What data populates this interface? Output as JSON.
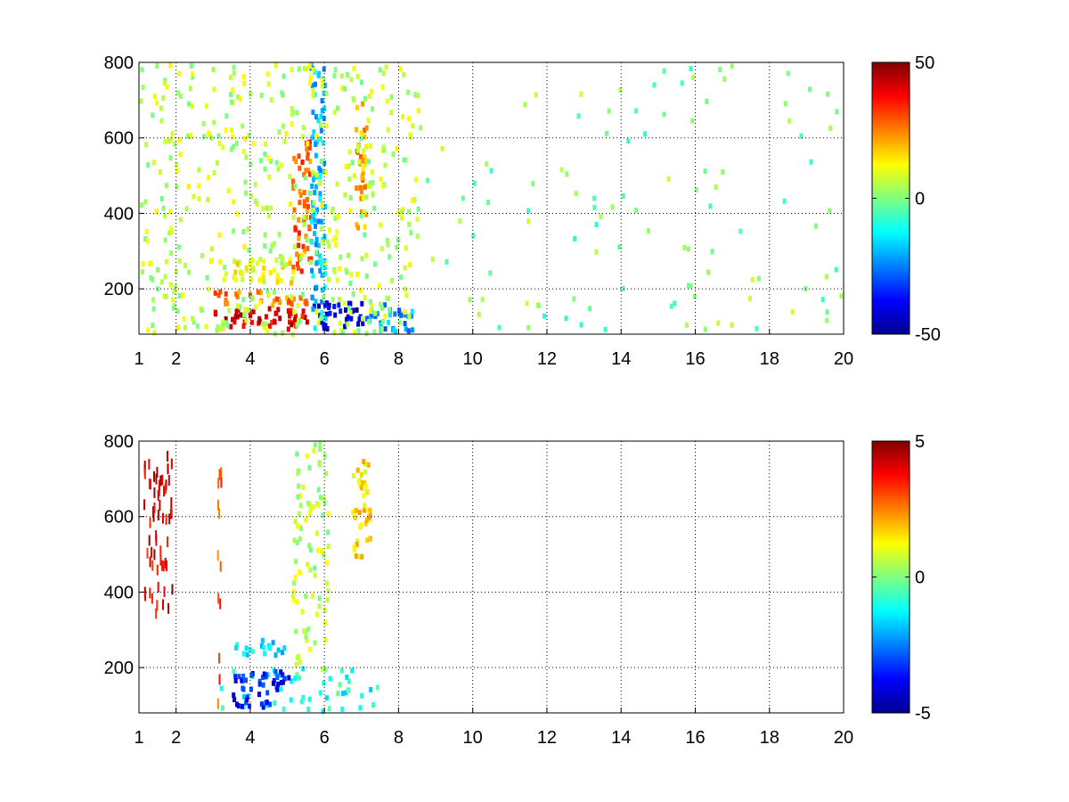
{
  "chart_data": [
    {
      "type": "heatmap",
      "title": "",
      "xlabel": "",
      "ylabel": "",
      "xlim": [
        1,
        20
      ],
      "ylim": [
        80,
        800
      ],
      "xticks": [
        1,
        2,
        4,
        6,
        8,
        10,
        12,
        14,
        16,
        18,
        20
      ],
      "yticks": [
        200,
        400,
        600,
        800
      ],
      "grid": true,
      "colormap": "jet",
      "clim": [
        -50,
        50
      ],
      "colorbar_ticks": [
        -50,
        0,
        50
      ],
      "features": [
        {
          "x": [
            3.0,
            5.5
          ],
          "y": [
            100,
            160
          ],
          "value": 40
        },
        {
          "x": [
            5.5,
            7.0
          ],
          "y": [
            100,
            170
          ],
          "value": -42
        },
        {
          "x": [
            3.0,
            5.5
          ],
          "y": [
            160,
            200
          ],
          "value": 25
        },
        {
          "x": [
            3.5,
            5.2
          ],
          "y": [
            220,
            290
          ],
          "value": 12
        },
        {
          "x": [
            5.1,
            5.6
          ],
          "y": [
            250,
            600
          ],
          "value": 28
        },
        {
          "x": [
            5.6,
            6.0
          ],
          "y": [
            100,
            800
          ],
          "value": -18
        },
        {
          "x": [
            6.8,
            7.1
          ],
          "y": [
            350,
            700
          ],
          "value": 22
        },
        {
          "x": [
            7.1,
            8.4
          ],
          "y": [
            90,
            170
          ],
          "value": -22
        },
        {
          "x": [
            1.0,
            8.5
          ],
          "y": [
            80,
            800
          ],
          "value": 6,
          "pattern": "dense noise"
        },
        {
          "x": [
            8.5,
            20.0
          ],
          "y": [
            80,
            800
          ],
          "value": 0,
          "pattern": "sparse noise"
        }
      ]
    },
    {
      "type": "heatmap",
      "title": "",
      "xlabel": "",
      "ylabel": "",
      "xlim": [
        1,
        20
      ],
      "ylim": [
        80,
        800
      ],
      "xticks": [
        1,
        2,
        4,
        6,
        8,
        10,
        12,
        14,
        16,
        18,
        20
      ],
      "yticks": [
        200,
        400,
        600,
        800
      ],
      "grid": true,
      "colormap": "jet",
      "clim": [
        -5,
        5
      ],
      "colorbar_ticks": [
        -5,
        0,
        5
      ],
      "features": [
        {
          "x": [
            3.1,
            7.5
          ],
          "y": [
            90,
            210
          ],
          "value": -1,
          "pattern": "dense noise"
        },
        {
          "x": [
            3.5,
            5.0
          ],
          "y": [
            100,
            200
          ],
          "value": -3.5
        },
        {
          "x": [
            5.1,
            6.1
          ],
          "y": [
            200,
            800
          ],
          "value": 0.5,
          "pattern": "noise"
        },
        {
          "x": [
            6.7,
            7.2
          ],
          "y": [
            500,
            760
          ],
          "value": 1.5
        },
        {
          "x": [
            3.5,
            4.9
          ],
          "y": [
            240,
            280
          ],
          "value": -1.5
        },
        {
          "x": [
            1.1,
            1.9
          ],
          "y": [
            350,
            780
          ],
          "value": 4,
          "pattern": "thin streaks"
        },
        {
          "x": [
            3.1,
            3.2
          ],
          "y": [
            100,
            800
          ],
          "value": 3,
          "pattern": "thin streak"
        }
      ]
    }
  ]
}
